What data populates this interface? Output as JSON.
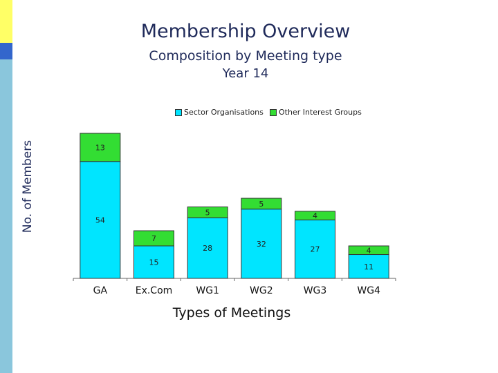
{
  "colors": {
    "sector": "#00e5ff",
    "other": "#33dd33",
    "strip_top": "#ffff66",
    "strip_mid": "#3366cc",
    "strip_bottom": "#8ac6dc"
  },
  "chart_data": {
    "type": "bar",
    "stacked": true,
    "title": "Membership Overview",
    "subtitle": "Composition by Meeting type",
    "subtitle2": "Year 14",
    "xlabel": "Types of Meetings",
    "ylabel": "No. of Members",
    "categories": [
      "GA",
      "Ex.Com",
      "WG1",
      "WG2",
      "WG3",
      "WG4"
    ],
    "series": [
      {
        "name": "Sector Organisations",
        "values": [
          54,
          15,
          28,
          32,
          27,
          11
        ]
      },
      {
        "name": "Other Interest Groups",
        "values": [
          13,
          7,
          5,
          5,
          4,
          4
        ]
      }
    ],
    "ylim": [
      0,
      67
    ],
    "legend_position": "top",
    "grid": false
  }
}
